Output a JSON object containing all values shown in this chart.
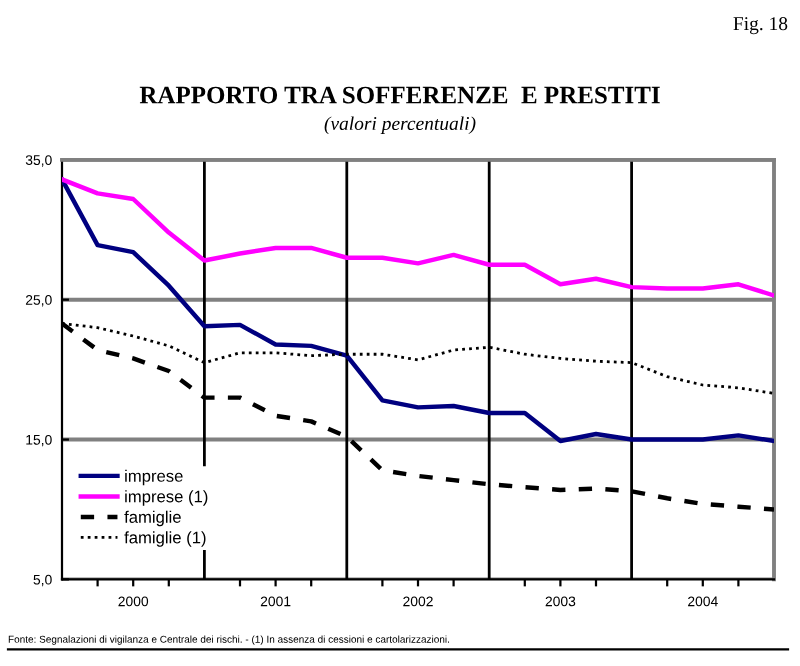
{
  "chart_data": {
    "type": "line",
    "title": "RAPPORTO TRA SOFFERENZE  E PRESTITI",
    "subtitle": "(valori percentuali)",
    "annotations": [
      "Fig. 18",
      "Fonte: Segnalazioni di vigilanza e Centrale dei rischi. - (1) In assenza di cessioni e cartolarizzazioni."
    ],
    "x": [
      2000.0,
      2000.25,
      2000.5,
      2000.75,
      2001.0,
      2001.25,
      2001.5,
      2001.75,
      2002.0,
      2002.25,
      2002.5,
      2002.75,
      2003.0,
      2003.25,
      2003.5,
      2003.75,
      2004.0,
      2004.25,
      2004.5,
      2004.75,
      2005.0
    ],
    "series": [
      {
        "name": "imprese",
        "color": "#000080",
        "line_style": "solid",
        "values": [
          33.6,
          28.9,
          28.4,
          26.0,
          23.1,
          23.2,
          21.8,
          21.7,
          21.0,
          17.8,
          17.3,
          17.4,
          16.9,
          16.9,
          14.9,
          15.4,
          15.0,
          15.0,
          15.0,
          15.3,
          14.9
        ]
      },
      {
        "name": "imprese (1)",
        "color": "#ff00ff",
        "line_style": "solid",
        "values": [
          33.6,
          32.6,
          32.2,
          29.8,
          27.8,
          28.3,
          28.7,
          28.7,
          28.0,
          28.0,
          27.6,
          28.2,
          27.5,
          27.5,
          26.1,
          26.5,
          25.9,
          25.8,
          25.8,
          26.1,
          25.3
        ]
      },
      {
        "name": "famiglie",
        "color": "#000000",
        "line_style": "dashed",
        "values": [
          23.3,
          21.4,
          20.8,
          19.9,
          18.0,
          18.0,
          16.7,
          16.3,
          15.2,
          12.8,
          12.4,
          12.1,
          11.8,
          11.6,
          11.4,
          11.5,
          11.3,
          10.8,
          10.4,
          10.2,
          10.0
        ]
      },
      {
        "name": "famiglie (1)",
        "color": "#000000",
        "line_style": "dotted",
        "values": [
          23.3,
          23.0,
          22.4,
          21.7,
          20.5,
          21.2,
          21.2,
          21.0,
          21.1,
          21.1,
          20.7,
          21.4,
          21.6,
          21.1,
          20.8,
          20.6,
          20.5,
          19.5,
          18.9,
          18.7,
          18.3
        ]
      }
    ],
    "xlim": [
      2000.0,
      2005.0
    ],
    "xticks": [
      {
        "value": 2000.25,
        "label": null
      },
      {
        "value": 2000.5,
        "label": "2000"
      },
      {
        "value": 2000.75,
        "label": null
      },
      {
        "value": 2001.25,
        "label": null
      },
      {
        "value": 2001.5,
        "label": "2001"
      },
      {
        "value": 2001.75,
        "label": null
      },
      {
        "value": 2002.25,
        "label": null
      },
      {
        "value": 2002.5,
        "label": "2002"
      },
      {
        "value": 2002.75,
        "label": null
      },
      {
        "value": 2003.25,
        "label": null
      },
      {
        "value": 2003.5,
        "label": "2003"
      },
      {
        "value": 2003.75,
        "label": null
      },
      {
        "value": 2004.25,
        "label": null
      },
      {
        "value": 2004.5,
        "label": "2004"
      },
      {
        "value": 2004.75,
        "label": null
      }
    ],
    "ylim": [
      5.0,
      35.0
    ],
    "yticks": [
      {
        "value": 5,
        "label": "5,0"
      },
      {
        "value": 15,
        "label": "15,0"
      },
      {
        "value": 25,
        "label": "25,0"
      },
      {
        "value": 35,
        "label": "35,0"
      }
    ],
    "ref_lines": [
      {
        "axis": "x",
        "value": 2001,
        "label": null,
        "color": "#000000"
      },
      {
        "axis": "x",
        "value": 2002,
        "label": null,
        "color": "#000000"
      },
      {
        "axis": "x",
        "value": 2003,
        "label": null,
        "color": "#000000"
      },
      {
        "axis": "x",
        "value": 2004,
        "label": null,
        "color": "#000000"
      }
    ],
    "grid": "y",
    "legend": "bottom left"
  }
}
